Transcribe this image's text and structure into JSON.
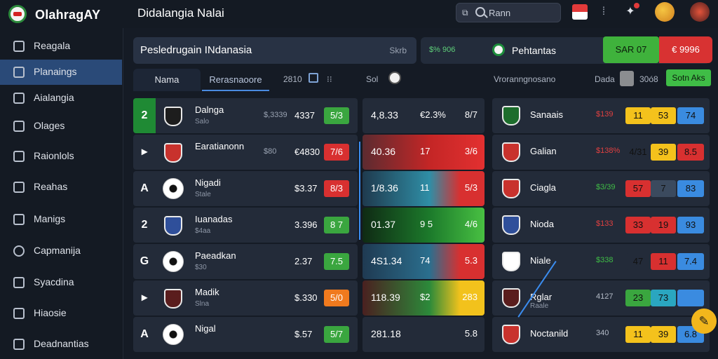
{
  "app": {
    "logo_text": "OlahragAY",
    "page_title": "Didalangia Nalai"
  },
  "search": {
    "value": "Rann",
    "placeholder": "Rann"
  },
  "sidebar": {
    "items": [
      {
        "label": "Reagala"
      },
      {
        "label": "Planaings"
      },
      {
        "label": "Aialangia"
      },
      {
        "label": "Olages"
      },
      {
        "label": "Raionlols"
      },
      {
        "label": "Reahas"
      },
      {
        "label": "Manigs"
      },
      {
        "label": "Capmanija"
      },
      {
        "label": "Syacdina"
      },
      {
        "label": "Hiaosie"
      },
      {
        "label": "Deadnantias"
      }
    ],
    "active_index": 1
  },
  "header": {
    "title": "Pesledrugain INdanasia",
    "right": "Skrb"
  },
  "header2": {
    "left_label": "$% 906",
    "title": "Pehtantas",
    "green_btn": "SAR 07",
    "red_btn": "€ 9996"
  },
  "tabs": [
    {
      "label": "Nama"
    },
    {
      "label": "Rerasnaoore"
    }
  ],
  "tab_extra": {
    "count": "2810",
    "sol": "Sol",
    "right_label": "Vroranngnosano",
    "dada": "Dada",
    "sooc": "30ó8",
    "btn": "Sotn Aks"
  },
  "left_rows": [
    {
      "rank": "2",
      "name": "Dalnga",
      "sub": "Salo",
      "v1": "$,3339",
      "v2": "4337",
      "badge": "5/3",
      "badge_color": "#3aa63f"
    },
    {
      "rank": "▸",
      "name": "Earatianonn",
      "sub": "",
      "v1": "$80",
      "v2": "€4830",
      "badge": "7/6",
      "badge_color": "#d83030"
    },
    {
      "rank": "A",
      "name": "Nigadi",
      "sub": "Stale",
      "v1": "",
      "v2": "$3.37",
      "badge": "8/3",
      "badge_color": "#d83030"
    },
    {
      "rank": "2",
      "name": "Iuanadas",
      "sub": "$4aa",
      "v1": "",
      "v2": "3.396",
      "badge": "8 7",
      "badge_color": "#3aa63f"
    },
    {
      "rank": "G",
      "name": "Paeadkan",
      "sub": "$30",
      "v1": "",
      "v2": "2.37",
      "badge": "7.5",
      "badge_color": "#3aa63f"
    },
    {
      "rank": "▸",
      "name": "Madik",
      "sub": "Slna",
      "v1": "",
      "v2": "$.330",
      "badge": "5/0",
      "badge_color": "#f07a1e"
    },
    {
      "rank": "A",
      "name": "Nigal",
      "sub": "",
      "v1": "",
      "v2": "$.57",
      "badge": "5/7",
      "badge_color": "#3aa63f"
    }
  ],
  "mid_rows": [
    {
      "a": "4,8.33",
      "b": "€2.3%",
      "c": "8/7"
    },
    {
      "a": "40.36",
      "b": "17",
      "c": "3/6"
    },
    {
      "a": "1/8.36",
      "b": "11",
      "c": "5/3"
    },
    {
      "a": "01.37",
      "b": "9 5",
      "c": "4/6"
    },
    {
      "a": "4S1.34",
      "b": "74",
      "c": "5.3"
    },
    {
      "a": "118.39",
      "b": "$2",
      "c": "283"
    },
    {
      "a": "281.18",
      "b": "",
      "c": "5.8"
    }
  ],
  "right_rows": [
    {
      "name": "Sanaais",
      "sub": "",
      "v1": "$139",
      "v1_color": "#e04040",
      "b1": "11",
      "b2": "53",
      "b3": "74",
      "c1": "#f4c21c",
      "c2": "#f4c21c",
      "c3": "#3a8be0"
    },
    {
      "name": "Galian",
      "sub": "",
      "v1": "$138%",
      "v1_color": "#e04040",
      "b1": "4/31",
      "b2": "39",
      "b3": "8.5",
      "c1": "#232b39",
      "c2": "#f4c21c",
      "c3": "#d83030"
    },
    {
      "name": "Ciagla",
      "sub": "",
      "v1": "$3/39",
      "v1_color": "#3fbd46",
      "b1": "57",
      "b2": "7",
      "b3": "83",
      "c1": "#d83030",
      "c2": "#3b4a5e",
      "c3": "#3a8be0"
    },
    {
      "name": "Nioda",
      "sub": "",
      "v1": "$133",
      "v1_color": "#e04040",
      "b1": "33",
      "b2": "19",
      "b3": "93",
      "c1": "#d83030",
      "c2": "#d83030",
      "c3": "#3a8be0"
    },
    {
      "name": "Niale",
      "sub": "",
      "v1": "$338",
      "v1_color": "#3fbd46",
      "b1": "47",
      "b2": "11",
      "b3": "7.4",
      "c1": "#232b39",
      "c2": "#d83030",
      "c3": "#3a8be0"
    },
    {
      "name": "Rglar",
      "sub": "Raale",
      "v1": "4127",
      "v1_color": "#b5bcc8",
      "b1": "23",
      "b2": "73",
      "b3": "",
      "c1": "#3aa63f",
      "c2": "#2aa6c0",
      "c3": "#3a8be0"
    },
    {
      "name": "Noctanild",
      "sub": "",
      "v1": "340",
      "v1_color": "#b5bcc8",
      "b1": "11",
      "b2": "39",
      "b3": "6.8",
      "c1": "#f4c21c",
      "c2": "#f4c21c",
      "c3": "#3a8be0"
    }
  ]
}
